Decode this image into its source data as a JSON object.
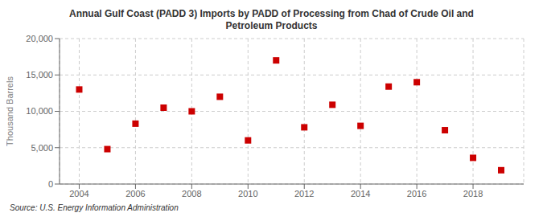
{
  "chart_data": {
    "type": "scatter",
    "title": "Annual Gulf Coast (PADD 3) Imports by PADD of Processing from Chad of Crude Oil and\nPetroleum Products",
    "y_label": "Thousand Barrels",
    "annotations": [
      "Source: U.S. Energy Information Administration"
    ],
    "x": [
      2004,
      2005,
      2006,
      2007,
      2008,
      2009,
      2010,
      2011,
      2012,
      2013,
      2014,
      2015,
      2016,
      2017,
      2018,
      2019
    ],
    "values": [
      13000,
      4800,
      8300,
      10500,
      10000,
      12000,
      6000,
      17000,
      7800,
      10900,
      8000,
      13400,
      14000,
      7400,
      3600,
      1900
    ],
    "color": "#cc0000",
    "marker": "square",
    "grid": true,
    "xlim": [
      2003.3,
      2019.8
    ],
    "xticks": [
      2004,
      2006,
      2008,
      2010,
      2012,
      2014,
      2016,
      2018
    ],
    "ylim": [
      0,
      20000
    ],
    "yticks": [
      0,
      {
        "value": 5000,
        "label": "5,000"
      },
      {
        "value": 10000,
        "label": "10,000"
      },
      {
        "value": 15000,
        "label": "15,000"
      },
      {
        "value": 20000,
        "label": "20,000"
      }
    ]
  }
}
